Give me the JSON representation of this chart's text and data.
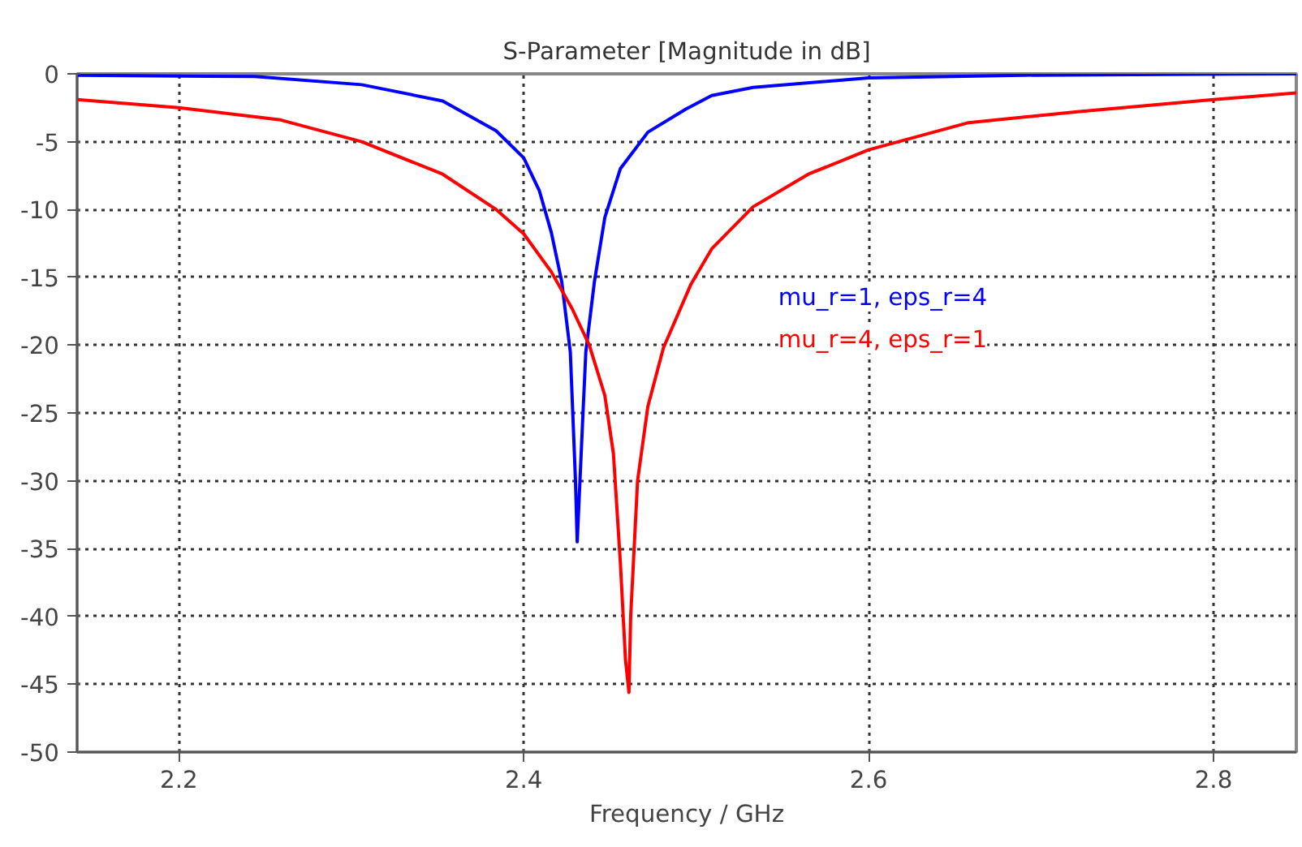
{
  "chart_data": {
    "type": "line",
    "title": "S-Parameter [Magnitude in dB]",
    "xlabel": "Frequency / GHz",
    "xlim": [
      2.141,
      2.848
    ],
    "ylim": [
      -50,
      0
    ],
    "xticks": [
      2.2,
      2.4,
      2.6,
      2.8
    ],
    "yticks": [
      0,
      -5,
      -10,
      -15,
      -20,
      -25,
      -30,
      -35,
      -40,
      -45,
      -50
    ],
    "grid": true,
    "legend": "right",
    "marker": "none",
    "line_style": "solid",
    "series": [
      {
        "name": "mu_r=1, eps_r=4",
        "color": "#0000ff",
        "x": [
          2.141,
          2.244,
          2.306,
          2.353,
          2.384,
          2.4,
          2.409,
          2.416,
          2.422,
          2.427,
          2.43,
          2.431,
          2.434,
          2.436,
          2.441,
          2.447,
          2.456,
          2.472,
          2.494,
          2.509,
          2.533,
          2.6,
          2.69,
          2.848
        ],
        "values": [
          -0.1,
          -0.2,
          -0.8,
          -2.0,
          -4.2,
          -6.2,
          -8.6,
          -11.7,
          -15.3,
          -20.5,
          -30,
          -34.5,
          -26,
          -20.5,
          -15.3,
          -10.6,
          -7,
          -4.3,
          -2.6,
          -1.6,
          -1.0,
          -0.3,
          -0.1,
          0
        ]
      },
      {
        "name": "mu_r=4, eps_r=1",
        "color": "#ff0000",
        "x": [
          2.141,
          2.2,
          2.259,
          2.306,
          2.353,
          2.384,
          2.4,
          2.416,
          2.428,
          2.438,
          2.447,
          2.452,
          2.456,
          2.459,
          2.461,
          2.462,
          2.466,
          2.472,
          2.481,
          2.497,
          2.509,
          2.533,
          2.565,
          2.6,
          2.658,
          2.721,
          2.8,
          2.848
        ],
        "values": [
          -1.9,
          -2.5,
          -3.4,
          -5.0,
          -7.4,
          -10,
          -11.8,
          -14.6,
          -17.3,
          -20,
          -23.7,
          -28,
          -36,
          -43.2,
          -45.6,
          -40,
          -30,
          -24.5,
          -20.2,
          -15.5,
          -12.9,
          -9.8,
          -7.4,
          -5.6,
          -3.6,
          -2.8,
          -1.9,
          -1.4
        ]
      }
    ]
  }
}
